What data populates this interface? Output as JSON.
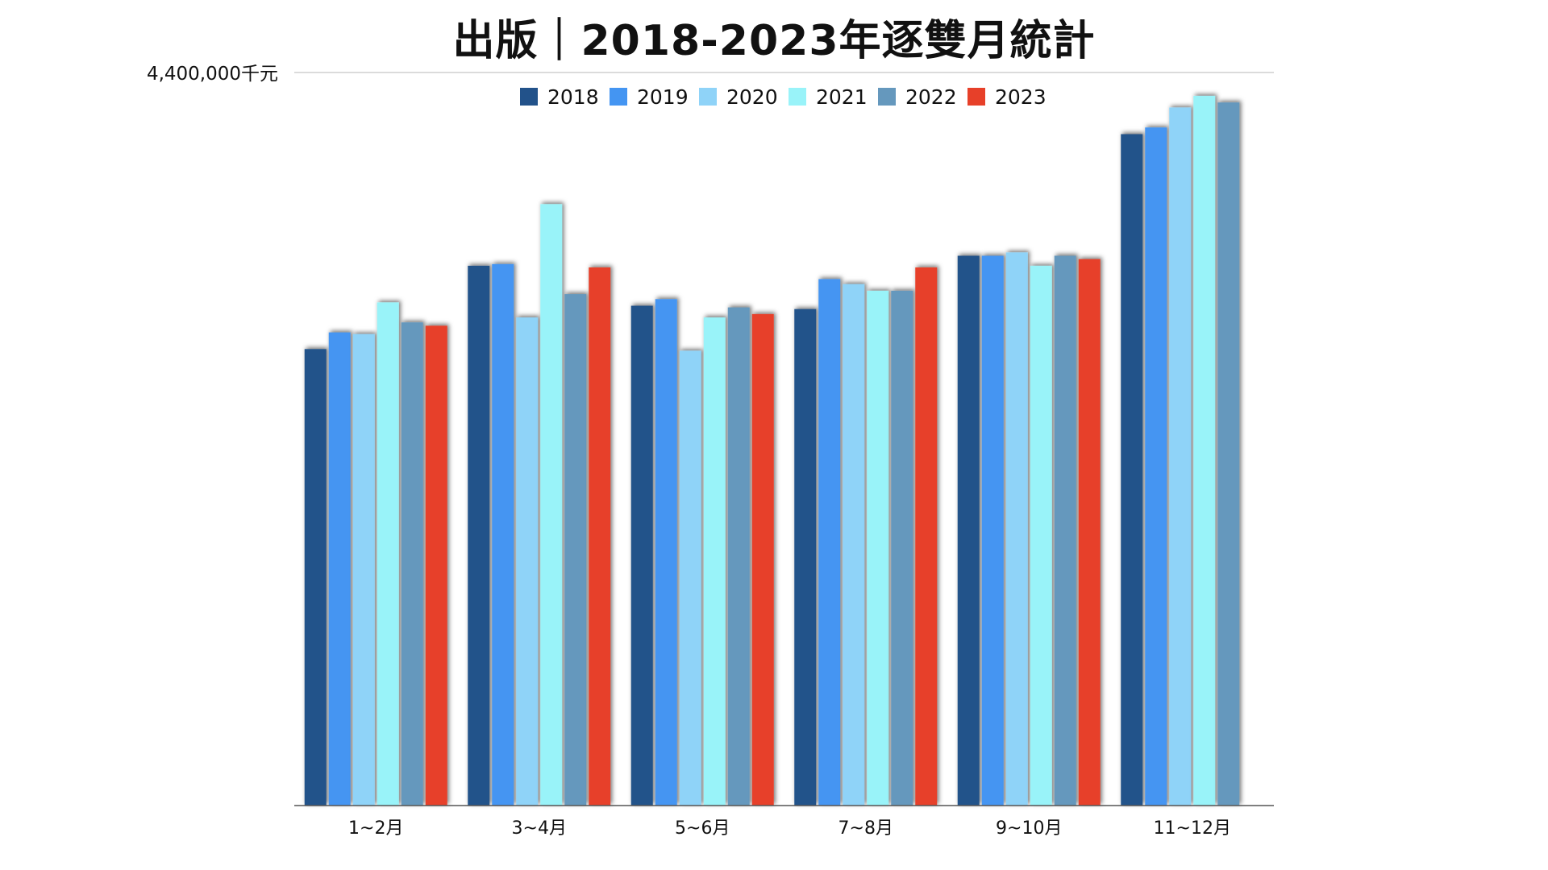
{
  "chart_data": {
    "type": "bar",
    "title": "出版｜2018-2023年逐雙月統計",
    "xlabel": "",
    "ylabel": "",
    "y_max_label": "4,400,000千元",
    "ylim": [
      0,
      4400000
    ],
    "grid": false,
    "legend_position": "top",
    "categories": [
      "1~2月",
      "3~4月",
      "5~6月",
      "7~8月",
      "9~10月",
      "11~12月"
    ],
    "series": [
      {
        "name": "2018",
        "color": "#22528a",
        "values": [
          2740000,
          3240000,
          3000000,
          2980000,
          3300000,
          4030000
        ]
      },
      {
        "name": "2019",
        "color": "#4495f2",
        "values": [
          2840000,
          3250000,
          3040000,
          3160000,
          3300000,
          4070000
        ]
      },
      {
        "name": "2020",
        "color": "#8fd3f8",
        "values": [
          2830000,
          2930000,
          2730000,
          3130000,
          3320000,
          4190000
        ]
      },
      {
        "name": "2021",
        "color": "#99f3f9",
        "values": [
          3020000,
          3610000,
          2930000,
          3090000,
          3240000,
          4260000
        ]
      },
      {
        "name": "2022",
        "color": "#6598bd",
        "values": [
          2900000,
          3070000,
          2990000,
          3090000,
          3300000,
          4220000
        ]
      },
      {
        "name": "2023",
        "color": "#e74029",
        "values": [
          2880000,
          3230000,
          2950000,
          3230000,
          3280000,
          null
        ]
      }
    ]
  }
}
